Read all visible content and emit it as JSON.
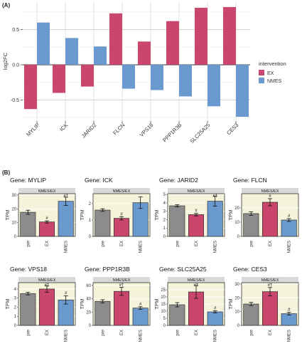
{
  "figure": {
    "panel_a_label": "(A)",
    "panel_b_label": "(B)"
  },
  "chart_data": [
    {
      "type": "bar",
      "panel": "(A)",
      "ylabel": "log2FC",
      "xlabel": "",
      "ylim": [
        -0.8,
        0.9
      ],
      "yticks": [
        -0.5,
        0.0,
        0.5
      ],
      "yticklabels": [
        "-0.5",
        "0.0",
        "0.5"
      ],
      "categories": [
        "MYLIP",
        "ICK",
        "JARID2",
        "FLCN",
        "VPS18",
        "PPP1R3B",
        "SLC25A25",
        "CES3"
      ],
      "legend": {
        "title": "intervention",
        "position": "right"
      },
      "series": [
        {
          "name": "EX",
          "color": "#c9466d",
          "values": [
            -0.63,
            -0.4,
            -0.31,
            0.73,
            0.33,
            0.62,
            0.81,
            0.82
          ]
        },
        {
          "name": "NMES",
          "color": "#6a99cf",
          "values": [
            0.6,
            0.38,
            0.26,
            -0.34,
            -0.36,
            -0.45,
            -0.59,
            -0.74
          ]
        }
      ],
      "grid": true
    },
    {
      "type": "bar",
      "panel": "(B)",
      "title": "Gene: MYLIP",
      "strip": "NMES/EX",
      "ylabel": "TPM",
      "categories": [
        "pre",
        "EX",
        "NMES"
      ],
      "colors": [
        "#8c8c8c",
        "#c9466d",
        "#6a99cf"
      ],
      "values": [
        17.5,
        10.5,
        25.5
      ],
      "errors": [
        1.5,
        0.8,
        3.0
      ],
      "annotations": [
        "",
        "#",
        "#†"
      ],
      "ylim": [
        0,
        31
      ],
      "yticks": [
        0,
        10,
        20,
        30
      ]
    },
    {
      "type": "bar",
      "panel": "(B)",
      "title": "Gene: ICK",
      "strip": "NMES/EX",
      "ylabel": "TPM",
      "categories": [
        "pre",
        "EX",
        "NMES"
      ],
      "colors": [
        "#8c8c8c",
        "#c9466d",
        "#6a99cf"
      ],
      "values": [
        1.6,
        1.1,
        2.05
      ],
      "errors": [
        0.08,
        0.1,
        0.35
      ],
      "annotations": [
        "",
        "#",
        ""
      ],
      "ylim": [
        0,
        2.6
      ],
      "yticks": [
        0,
        1,
        2
      ]
    },
    {
      "type": "bar",
      "panel": "(B)",
      "title": "Gene: JARID2",
      "strip": "NMES/EX",
      "ylabel": "TPM",
      "categories": [
        "pre",
        "EX",
        "NMES"
      ],
      "colors": [
        "#8c8c8c",
        "#c9466d",
        "#6a99cf"
      ],
      "values": [
        3.65,
        2.6,
        4.2
      ],
      "errors": [
        0.12,
        0.15,
        0.6
      ],
      "annotations": [
        "",
        "#",
        "#†"
      ],
      "ylim": [
        0,
        5.1
      ],
      "yticks": [
        0,
        1,
        2,
        3,
        4,
        5
      ]
    },
    {
      "type": "bar",
      "panel": "(B)",
      "title": "Gene: FLCN",
      "strip": "NMES/EX",
      "ylabel": "TPM",
      "categories": [
        "pre",
        "EX",
        "NMES"
      ],
      "colors": [
        "#8c8c8c",
        "#c9466d",
        "#6a99cf"
      ],
      "values": [
        16.0,
        24.0,
        11.5
      ],
      "errors": [
        1.2,
        2.5,
        1.0
      ],
      "annotations": [
        "",
        "#",
        "#"
      ],
      "ylim": [
        0,
        30
      ],
      "yticks": [
        0,
        10,
        20
      ]
    },
    {
      "type": "bar",
      "panel": "(B)",
      "title": "Gene: VPS18",
      "strip": "NMES/EX",
      "ylabel": "TPM",
      "categories": [
        "pre",
        "EX",
        "NMES"
      ],
      "colors": [
        "#8c8c8c",
        "#c9466d",
        "#6a99cf"
      ],
      "values": [
        3.5,
        4.0,
        2.8
      ],
      "errors": [
        0.15,
        0.35,
        0.45
      ],
      "annotations": [
        "",
        "#†",
        "#"
      ],
      "ylim": [
        0,
        4.7
      ],
      "yticks": [
        0,
        1,
        2,
        3,
        4
      ]
    },
    {
      "type": "bar",
      "panel": "(B)",
      "title": "Gene: PPP1R3B",
      "strip": "NMES/EX",
      "ylabel": "TPM",
      "categories": [
        "pre",
        "EX",
        "NMES"
      ],
      "colors": [
        "#8c8c8c",
        "#c9466d",
        "#6a99cf"
      ],
      "values": [
        36.0,
        51.0,
        26.0
      ],
      "errors": [
        2.5,
        6.0,
        2.0
      ],
      "annotations": [
        "",
        "#†",
        "#"
      ],
      "ylim": [
        0,
        64
      ],
      "yticks": [
        0,
        20,
        40,
        60
      ]
    },
    {
      "type": "bar",
      "panel": "(B)",
      "title": "Gene: SLC25A25",
      "strip": "NMES/EX",
      "ylabel": "TPM",
      "categories": [
        "pre",
        "EX",
        "NMES"
      ],
      "colors": [
        "#8c8c8c",
        "#c9466d",
        "#6a99cf"
      ],
      "values": [
        14.5,
        23.5,
        9.5
      ],
      "errors": [
        1.5,
        4.5,
        0.8
      ],
      "annotations": [
        "",
        "#†",
        "#"
      ],
      "ylim": [
        0,
        30
      ],
      "yticks": [
        0,
        5,
        10,
        15,
        20,
        25
      ]
    },
    {
      "type": "bar",
      "panel": "(B)",
      "title": "Gene: CES3",
      "strip": "NMES/EX",
      "ylabel": "TPM",
      "categories": [
        "pre",
        "EX",
        "NMES"
      ],
      "colors": [
        "#8c8c8c",
        "#c9466d",
        "#6a99cf"
      ],
      "values": [
        15.5,
        24.5,
        8.5
      ],
      "errors": [
        1.2,
        3.0,
        1.0
      ],
      "annotations": [
        "",
        "#†",
        "#"
      ],
      "ylim": [
        0,
        31
      ],
      "yticks": [
        0,
        10,
        20,
        30
      ]
    }
  ]
}
